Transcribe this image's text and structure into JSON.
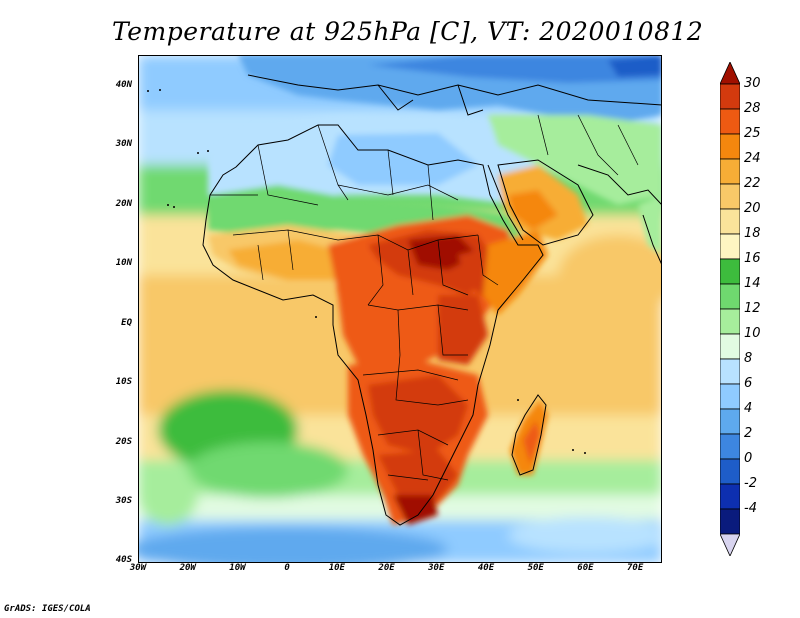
{
  "title": "Temperature at 925hPa [C], VT: 2020010812",
  "credit": "GrADS: IGES/COLA",
  "map": {
    "region": "Africa",
    "lon_range": [
      -30,
      75
    ],
    "lat_range": [
      -40,
      45
    ],
    "lat_tick_labels": [
      "40N",
      "30N",
      "20N",
      "10N",
      "EQ",
      "10S",
      "20S",
      "30S",
      "40S"
    ],
    "lat_tick_values": [
      40,
      30,
      20,
      10,
      0,
      -10,
      -20,
      -30,
      -40
    ],
    "lon_tick_labels": [
      "30W",
      "20W",
      "10W",
      "0",
      "10E",
      "20E",
      "30E",
      "40E",
      "50E",
      "60E",
      "70E"
    ],
    "lon_tick_values": [
      -30,
      -20,
      -10,
      0,
      10,
      20,
      30,
      40,
      50,
      60,
      70
    ]
  },
  "colorbar": {
    "labels": [
      "30",
      "28",
      "25",
      "24",
      "22",
      "20",
      "18",
      "16",
      "14",
      "12",
      "10",
      "8",
      "6",
      "4",
      "2",
      "0",
      "-2",
      "-4"
    ],
    "colors_top_to_bottom": [
      "#a01000",
      "#d33a0e",
      "#ee5a12",
      "#f5870e",
      "#f7ad36",
      "#f8c868",
      "#fae39a",
      "#fef6c2",
      "#3dbc3d",
      "#6fd96f",
      "#a6ed9c",
      "#e2fbe2",
      "#b8e2ff",
      "#8fcbff",
      "#5ea9ee",
      "#3d86e0",
      "#1e5dc8",
      "#0d2fb0",
      "#0a1b7d",
      "#d8d4ef"
    ]
  }
}
